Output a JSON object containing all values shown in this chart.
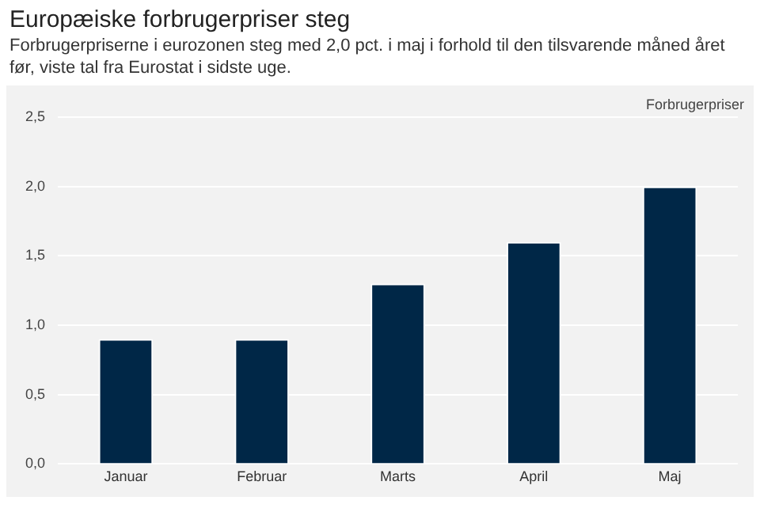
{
  "chart_data": {
    "type": "bar",
    "title": "Europæiske forbrugerpriser steg",
    "subtitle": "Forbrugerpriserne i eurozonen steg med 2,0 pct. i maj i forhold til den tilsvarende måned året før, viste tal fra Eurostat i sidste uge.",
    "ylabel": "Forbrugerpriser",
    "categories": [
      "Januar",
      "Februar",
      "Marts",
      "April",
      "Maj"
    ],
    "values": [
      0.9,
      0.9,
      1.3,
      1.6,
      2.0
    ],
    "color": "#002747",
    "ylim": [
      0,
      2.5
    ],
    "yticks": [
      {
        "value": 0,
        "label": "0,0"
      },
      {
        "value": 0.5,
        "label": "0,5"
      },
      {
        "value": 1,
        "label": "1,0"
      },
      {
        "value": 1.5,
        "label": "1,5"
      },
      {
        "value": 2,
        "label": "2,0"
      },
      {
        "value": 2.5,
        "label": "2,5"
      }
    ],
    "grid": "y"
  }
}
